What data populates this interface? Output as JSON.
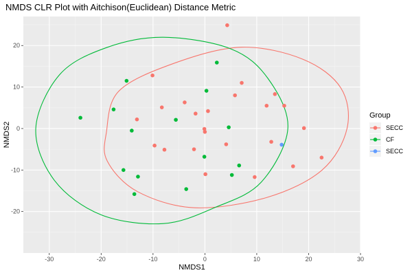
{
  "chart_data": {
    "type": "scatter",
    "title": "NMDS CLR Plot with Aitchison(Euclidean) Distance Metric",
    "xlabel": "NMDS1",
    "ylabel": "NMDS2",
    "xlim": [
      -35,
      30
    ],
    "ylim": [
      -30,
      27
    ],
    "xticks": [
      -30,
      -20,
      -10,
      0,
      10,
      20,
      30
    ],
    "yticks": [
      -20,
      -10,
      0,
      10,
      20
    ],
    "grid": true,
    "legend": {
      "title": "Group",
      "position": "right",
      "entries": [
        {
          "label": "SECC",
          "color": "#F8766D"
        },
        {
          "label": "CF",
          "color": "#00BA38"
        },
        {
          "label": "SECC",
          "color": "#619CFF"
        }
      ]
    },
    "series": [
      {
        "color": "#F8766D",
        "points": [
          {
            "x": 4.3,
            "y": 24.9
          },
          {
            "x": -10.1,
            "y": 12.8
          },
          {
            "x": 7.1,
            "y": 11.0
          },
          {
            "x": 13.5,
            "y": 8.3
          },
          {
            "x": 5.8,
            "y": 8.0
          },
          {
            "x": -3.9,
            "y": 6.3
          },
          {
            "x": 11.9,
            "y": 5.5
          },
          {
            "x": 15.3,
            "y": 5.5
          },
          {
            "x": -8.3,
            "y": 5.1
          },
          {
            "x": 0.6,
            "y": 4.2
          },
          {
            "x": -1.8,
            "y": 3.6
          },
          {
            "x": -13.1,
            "y": 2.2
          },
          {
            "x": -0.1,
            "y": -0.1
          },
          {
            "x": 19.1,
            "y": 0.1
          },
          {
            "x": 0.0,
            "y": -0.8
          },
          {
            "x": 12.8,
            "y": -3.2
          },
          {
            "x": 4.1,
            "y": -3.8
          },
          {
            "x": -9.7,
            "y": -4.1
          },
          {
            "x": -2.1,
            "y": -5.0
          },
          {
            "x": -7.8,
            "y": -5.1
          },
          {
            "x": 22.5,
            "y": -7.0
          },
          {
            "x": 17.0,
            "y": -9.1
          },
          {
            "x": 0.1,
            "y": -11.0
          },
          {
            "x": 9.6,
            "y": -11.7
          }
        ]
      },
      {
        "color": "#00BA38",
        "points": [
          {
            "x": 2.3,
            "y": 15.9
          },
          {
            "x": -15.1,
            "y": 11.5
          },
          {
            "x": 0.3,
            "y": 9.1
          },
          {
            "x": -17.6,
            "y": 4.6
          },
          {
            "x": -24.0,
            "y": 2.6
          },
          {
            "x": -5.6,
            "y": 2.1
          },
          {
            "x": 4.6,
            "y": 0.3
          },
          {
            "x": -14.1,
            "y": -0.5
          },
          {
            "x": -0.1,
            "y": -6.8
          },
          {
            "x": 6.6,
            "y": -8.9
          },
          {
            "x": -15.7,
            "y": -10.0
          },
          {
            "x": 5.2,
            "y": -11.2
          },
          {
            "x": -12.9,
            "y": -11.6
          },
          {
            "x": -3.6,
            "y": -14.6
          },
          {
            "x": -13.6,
            "y": -15.8
          }
        ]
      },
      {
        "color": "#619CFF",
        "points": [
          {
            "x": 14.8,
            "y": -3.9
          }
        ]
      }
    ],
    "ellipses": [
      {
        "color": "#F8766D",
        "points": [
          [
            -19.0,
            -1.0
          ],
          [
            -16.6,
            9.0
          ],
          [
            -6.0,
            15.7
          ],
          [
            7.0,
            19.6
          ],
          [
            18.9,
            16.7
          ],
          [
            26.2,
            9.8
          ],
          [
            27.4,
            0.0
          ],
          [
            22.6,
            -10.0
          ],
          [
            12.0,
            -16.6
          ],
          [
            -2.0,
            -19.1
          ],
          [
            -13.0,
            -15.2
          ],
          [
            -18.8,
            -7.9
          ]
        ]
      },
      {
        "color": "#00BA38",
        "points": [
          [
            -32.6,
            0.0
          ],
          [
            -28.0,
            13.0
          ],
          [
            -19.0,
            19.5
          ],
          [
            -8.0,
            22.0
          ],
          [
            5.0,
            19.2
          ],
          [
            12.2,
            12.0
          ],
          [
            16.0,
            0.0
          ],
          [
            10.8,
            -13.0
          ],
          [
            2.0,
            -19.0
          ],
          [
            -8.0,
            -22.9
          ],
          [
            -20.0,
            -20.8
          ],
          [
            -29.0,
            -12.5
          ]
        ]
      }
    ]
  }
}
